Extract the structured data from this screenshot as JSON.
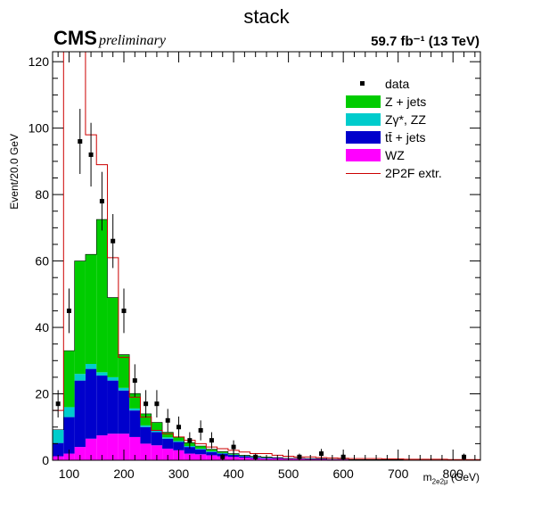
{
  "header": {
    "title": "stack",
    "experiment": "CMS",
    "status": "preliminary",
    "lumi": "59.7 fb⁻¹ (13 TeV)"
  },
  "chart_data": {
    "type": "bar",
    "stacked": true,
    "ylabel": "Event/20.0 GeV",
    "xlabel": "m",
    "xlabel_sub": "2e2μ",
    "xlabel_unit": "(GeV)",
    "xlim": [
      70,
      850
    ],
    "ylim": [
      0,
      123
    ],
    "bin_width": 20,
    "xticks": [
      100,
      200,
      300,
      400,
      500,
      600,
      700,
      800
    ],
    "yticks": [
      0,
      20,
      40,
      60,
      80,
      100,
      120
    ],
    "legend_position": "top-right",
    "bin_low_edges": [
      70,
      90,
      110,
      130,
      150,
      170,
      190,
      210,
      230,
      250,
      270,
      290,
      310,
      330,
      350,
      370,
      390,
      410,
      430,
      450,
      470,
      490,
      510,
      530,
      550,
      570,
      590,
      610,
      630,
      650,
      670,
      690,
      710,
      730,
      750,
      770,
      790,
      810,
      830
    ],
    "stack": [
      {
        "name": "WZ",
        "color": "#ff00ff",
        "values": [
          1.2,
          2,
          4,
          6.5,
          7.5,
          8,
          8,
          7,
          5,
          4.5,
          3.5,
          3,
          2,
          1.8,
          1.5,
          1.2,
          1,
          0.8,
          0.6,
          0.5,
          0.5,
          0.4,
          0.4,
          0.3,
          0.3,
          0.3,
          0.3,
          0.2,
          0.2,
          0.2,
          0.2,
          0.2,
          0.1,
          0.1,
          0.1,
          0.1,
          0.1,
          0.1,
          0.1
        ]
      },
      {
        "name": "tt̄ + jets",
        "color": "#0000cc",
        "values": [
          4,
          11,
          20,
          21,
          18,
          16,
          13,
          8,
          5,
          4,
          3,
          2.5,
          2,
          1.5,
          1,
          0.8,
          0.6,
          0.4,
          0.3,
          0.2,
          0.2,
          0.1,
          0.1,
          0.1,
          0.1,
          0,
          0,
          0,
          0,
          0,
          0,
          0,
          0,
          0,
          0,
          0,
          0,
          0,
          0
        ]
      },
      {
        "name": "Zγ*, ZZ",
        "color": "#00cccc",
        "values": [
          4,
          3,
          2,
          1.5,
          1,
          1,
          0.8,
          0.6,
          0.5,
          0.4,
          0.4,
          0.3,
          0.3,
          0.2,
          0.2,
          0.2,
          0.1,
          0.1,
          0.1,
          0.1,
          0,
          0,
          0,
          0,
          0,
          0,
          0,
          0,
          0,
          0,
          0,
          0,
          0,
          0,
          0,
          0,
          0,
          0,
          0
        ]
      },
      {
        "name": "Z + jets",
        "color": "#00cc00",
        "values": [
          0,
          17,
          34,
          33,
          46,
          24,
          10,
          4.5,
          3.5,
          2.5,
          1.5,
          1.2,
          1,
          0.8,
          0.6,
          0.4,
          0.3,
          0.2,
          0.2,
          0.2,
          0.1,
          0.1,
          0.1,
          0.1,
          0.1,
          0,
          0,
          0,
          0,
          0,
          0,
          0,
          0,
          0,
          0,
          0,
          0,
          0,
          0
        ]
      }
    ],
    "extrapolation": {
      "name": "2P2F extr.",
      "color": "#cc0000",
      "values": [
        15,
        123,
        123,
        98,
        89,
        61,
        31,
        19,
        13,
        9,
        8,
        7,
        6,
        5,
        4,
        3.5,
        3,
        2.5,
        2,
        2,
        1.5,
        1.2,
        1,
        1,
        0.8,
        0.7,
        0.6,
        0.5,
        0.5,
        0.5,
        0.4,
        0.4,
        0.3,
        0.3,
        0.3,
        0.3,
        0.2,
        0.2,
        0.2
      ]
    },
    "data": {
      "name": "data",
      "color": "#000000",
      "points": [
        {
          "x": 80,
          "y": 17
        },
        {
          "x": 100,
          "y": 45
        },
        {
          "x": 120,
          "y": 96
        },
        {
          "x": 140,
          "y": 92
        },
        {
          "x": 160,
          "y": 78
        },
        {
          "x": 180,
          "y": 66
        },
        {
          "x": 200,
          "y": 45
        },
        {
          "x": 220,
          "y": 24
        },
        {
          "x": 240,
          "y": 17
        },
        {
          "x": 260,
          "y": 17
        },
        {
          "x": 280,
          "y": 12
        },
        {
          "x": 300,
          "y": 10
        },
        {
          "x": 320,
          "y": 6
        },
        {
          "x": 340,
          "y": 9
        },
        {
          "x": 360,
          "y": 6
        },
        {
          "x": 380,
          "y": 1
        },
        {
          "x": 400,
          "y": 4
        },
        {
          "x": 440,
          "y": 1
        },
        {
          "x": 520,
          "y": 1
        },
        {
          "x": 560,
          "y": 2
        },
        {
          "x": 600,
          "y": 1
        },
        {
          "x": 820,
          "y": 1
        }
      ]
    }
  }
}
